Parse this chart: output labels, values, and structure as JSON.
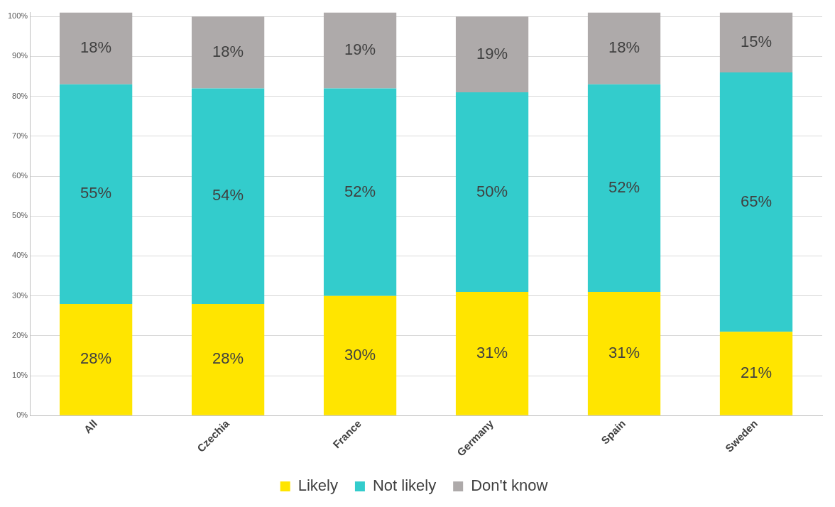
{
  "chart_data": {
    "type": "bar",
    "stacked": true,
    "categories": [
      "All",
      "Czechia",
      "France",
      "Germany",
      "Spain",
      "Sweden"
    ],
    "series": [
      {
        "name": "Likely",
        "color": "#ffe500",
        "values": [
          28,
          28,
          30,
          31,
          31,
          21
        ],
        "value_labels": [
          "28%",
          "28%",
          "30%",
          "31%",
          "31%",
          "21%"
        ]
      },
      {
        "name": "Not likely",
        "color": "#33cccc",
        "values": [
          55,
          54,
          52,
          50,
          52,
          65
        ],
        "value_labels": [
          "55%",
          "54%",
          "52%",
          "50%",
          "52%",
          "65%"
        ]
      },
      {
        "name": "Don't know",
        "color": "#aeaaaa",
        "values": [
          18,
          18,
          19,
          19,
          18,
          15
        ],
        "value_labels": [
          "18%",
          "18%",
          "19%",
          "19%",
          "18%",
          "15%"
        ]
      }
    ],
    "ylim": [
      0,
      101
    ],
    "yticks": [
      {
        "value": 0,
        "label": "0%"
      },
      {
        "value": 10,
        "label": "10%"
      },
      {
        "value": 20,
        "label": "20%"
      },
      {
        "value": 30,
        "label": "30%"
      },
      {
        "value": 40,
        "label": "40%"
      },
      {
        "value": 50,
        "label": "50%"
      },
      {
        "value": 60,
        "label": "60%"
      },
      {
        "value": 70,
        "label": "70%"
      },
      {
        "value": 80,
        "label": "80%"
      },
      {
        "value": 90,
        "label": "90%"
      },
      {
        "value": 100,
        "label": "100%"
      }
    ],
    "grid": "y",
    "legend": "bottom"
  }
}
